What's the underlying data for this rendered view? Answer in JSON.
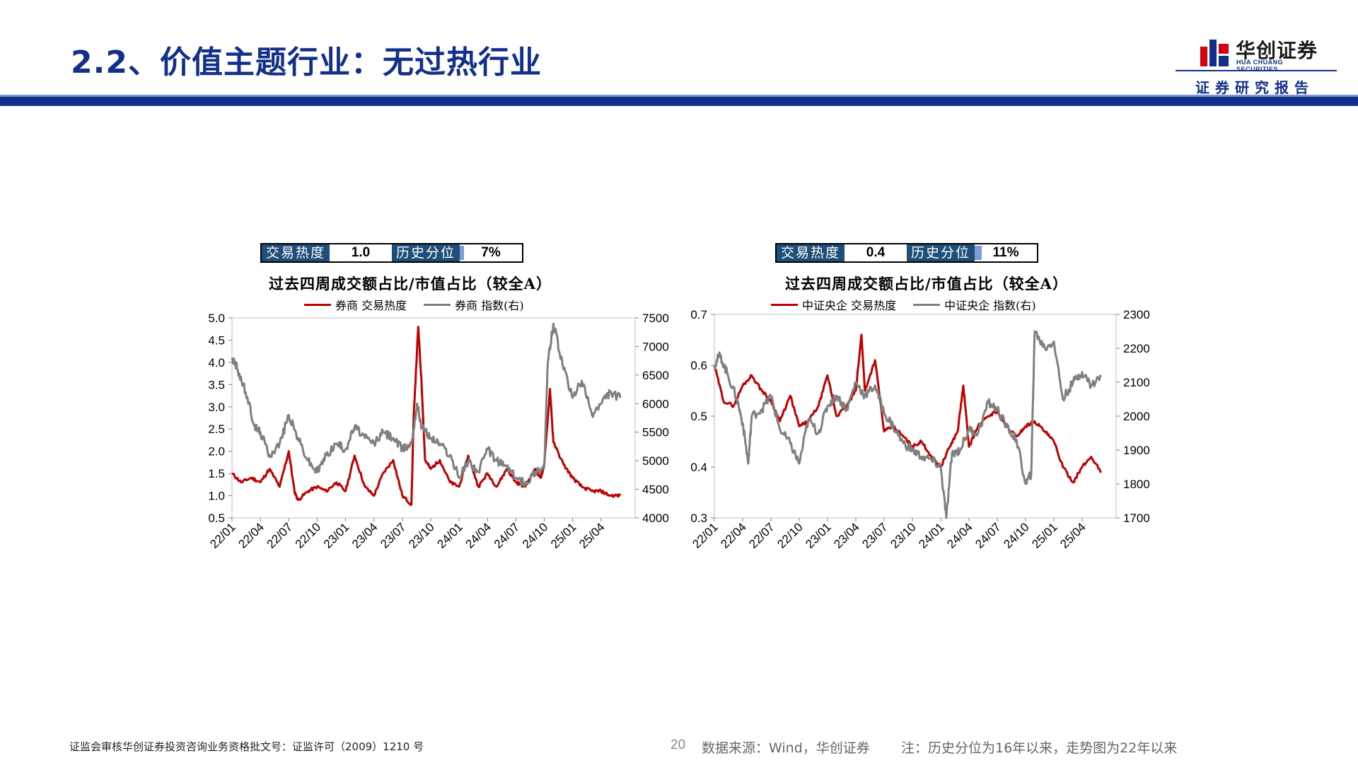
{
  "header": {
    "title": "2.2、价值主题行业：无过热行业",
    "logo_cn": "华创证券",
    "logo_en": "HUA CHUANG SECURITIES",
    "report_tag": "证券研究报告",
    "brand_color": "#12308a",
    "accent_red": "#d7000f"
  },
  "panels": [
    {
      "heat_label": "交易热度",
      "heat_value": "1.0",
      "pct_label": "历史分位",
      "pct_value": "7%",
      "pct_fraction": 0.07
    },
    {
      "heat_label": "交易热度",
      "heat_value": "0.4",
      "pct_label": "历史分位",
      "pct_value": "11%",
      "pct_fraction": 0.11
    }
  ],
  "chart_data": [
    {
      "type": "line",
      "title": "过去四周成交额占比/市值占比（较全A）",
      "x_ticks": [
        "22/01",
        "22/04",
        "22/07",
        "22/10",
        "23/01",
        "23/04",
        "23/07",
        "23/10",
        "24/01",
        "24/04",
        "24/07",
        "24/10",
        "25/01",
        "25/04"
      ],
      "left_axis": {
        "ylim": [
          0.5,
          5.0
        ],
        "ticks": [
          "0.5",
          "1.0",
          "1.5",
          "2.0",
          "2.5",
          "3.0",
          "3.5",
          "4.0",
          "4.5",
          "5.0"
        ]
      },
      "right_axis": {
        "ylim": [
          4000,
          7500
        ],
        "ticks": [
          "4000",
          "4500",
          "5000",
          "5500",
          "6000",
          "6500",
          "7000",
          "7500"
        ]
      },
      "series": [
        {
          "name": "券商 交易热度",
          "axis": "left",
          "color": "#c00000",
          "x": [
            2022.0,
            2022.08,
            2022.17,
            2022.25,
            2022.33,
            2022.42,
            2022.5,
            2022.55,
            2022.58,
            2022.67,
            2022.75,
            2022.83,
            2022.92,
            2023.0,
            2023.08,
            2023.17,
            2023.25,
            2023.33,
            2023.42,
            2023.5,
            2023.58,
            2023.6,
            2023.64,
            2023.67,
            2023.7,
            2023.75,
            2023.83,
            2023.92,
            2024.0,
            2024.08,
            2024.17,
            2024.25,
            2024.33,
            2024.42,
            2024.5,
            2024.58,
            2024.67,
            2024.72,
            2024.75,
            2024.8,
            2024.83,
            2024.92,
            2025.0,
            2025.08,
            2025.17,
            2025.25,
            2025.33,
            2025.42
          ],
          "values": [
            1.5,
            1.3,
            1.4,
            1.3,
            1.6,
            1.2,
            2.0,
            1.1,
            0.9,
            1.1,
            1.2,
            1.1,
            1.3,
            1.1,
            1.9,
            1.2,
            1.0,
            1.5,
            1.8,
            1.0,
            0.8,
            2.8,
            4.8,
            3.5,
            1.8,
            1.6,
            1.8,
            1.3,
            1.2,
            1.9,
            1.2,
            1.5,
            1.2,
            1.6,
            1.3,
            1.2,
            1.6,
            1.4,
            1.7,
            3.4,
            2.2,
            1.7,
            1.4,
            1.2,
            1.1,
            1.1,
            1.0,
            1.0
          ]
        },
        {
          "name": "券商 指数(右)",
          "axis": "right",
          "color": "#7f7f7f",
          "x": [
            2022.0,
            2022.05,
            2022.12,
            2022.2,
            2022.25,
            2022.33,
            2022.42,
            2022.5,
            2022.58,
            2022.67,
            2022.75,
            2022.83,
            2022.92,
            2023.0,
            2023.08,
            2023.17,
            2023.25,
            2023.33,
            2023.42,
            2023.5,
            2023.58,
            2023.63,
            2023.67,
            2023.75,
            2023.83,
            2023.92,
            2024.0,
            2024.08,
            2024.17,
            2024.25,
            2024.33,
            2024.42,
            2024.5,
            2024.58,
            2024.67,
            2024.75,
            2024.78,
            2024.83,
            2024.92,
            2025.0,
            2025.08,
            2025.17,
            2025.25,
            2025.33,
            2025.42
          ],
          "values": [
            6800,
            6600,
            6200,
            5600,
            5500,
            5100,
            5300,
            5800,
            5400,
            5000,
            4800,
            5100,
            5300,
            5200,
            5600,
            5400,
            5300,
            5500,
            5400,
            5200,
            5300,
            6000,
            5600,
            5400,
            5300,
            5100,
            4700,
            5000,
            4800,
            5200,
            5000,
            4900,
            4700,
            4600,
            4800,
            4900,
            6700,
            7400,
            6600,
            6100,
            6400,
            5800,
            6000,
            6200,
            6100
          ]
        }
      ]
    },
    {
      "type": "line",
      "title": "过去四周成交额占比/市值占比（较全A）",
      "x_ticks": [
        "22/01",
        "22/04",
        "22/07",
        "22/10",
        "23/01",
        "23/04",
        "23/07",
        "23/10",
        "24/01",
        "24/04",
        "24/07",
        "24/10",
        "25/01",
        "25/04"
      ],
      "left_axis": {
        "ylim": [
          0.3,
          0.7
        ],
        "ticks": [
          "0.3",
          "0.4",
          "0.5",
          "0.6",
          "0.7"
        ]
      },
      "right_axis": {
        "ylim": [
          1700,
          2300
        ],
        "ticks": [
          "1700",
          "1800",
          "1900",
          "2000",
          "2100",
          "2200",
          "2300"
        ]
      },
      "series": [
        {
          "name": "中证央企 交易热度",
          "axis": "left",
          "color": "#c00000",
          "x": [
            2022.0,
            2022.08,
            2022.17,
            2022.25,
            2022.33,
            2022.42,
            2022.5,
            2022.58,
            2022.67,
            2022.75,
            2022.83,
            2022.92,
            2023.0,
            2023.08,
            2023.17,
            2023.25,
            2023.3,
            2023.33,
            2023.42,
            2023.5,
            2023.58,
            2023.67,
            2023.75,
            2023.83,
            2023.92,
            2024.0,
            2024.08,
            2024.15,
            2024.2,
            2024.25,
            2024.33,
            2024.42,
            2024.5,
            2024.58,
            2024.67,
            2024.75,
            2024.83,
            2024.92,
            2025.0,
            2025.08,
            2025.17,
            2025.25,
            2025.33,
            2025.42
          ],
          "values": [
            0.6,
            0.53,
            0.52,
            0.56,
            0.58,
            0.55,
            0.53,
            0.49,
            0.54,
            0.48,
            0.49,
            0.52,
            0.58,
            0.5,
            0.52,
            0.55,
            0.66,
            0.55,
            0.61,
            0.47,
            0.48,
            0.46,
            0.44,
            0.45,
            0.42,
            0.4,
            0.44,
            0.47,
            0.56,
            0.44,
            0.48,
            0.5,
            0.51,
            0.48,
            0.46,
            0.48,
            0.49,
            0.47,
            0.45,
            0.4,
            0.37,
            0.4,
            0.42,
            0.39
          ]
        },
        {
          "name": "中证央企 指数(右)",
          "axis": "right",
          "color": "#7f7f7f",
          "x": [
            2022.0,
            2022.05,
            2022.12,
            2022.2,
            2022.25,
            2022.3,
            2022.33,
            2022.42,
            2022.5,
            2022.58,
            2022.67,
            2022.75,
            2022.83,
            2022.92,
            2023.0,
            2023.08,
            2023.17,
            2023.25,
            2023.33,
            2023.42,
            2023.5,
            2023.58,
            2023.67,
            2023.75,
            2023.83,
            2023.92,
            2024.0,
            2024.05,
            2024.1,
            2024.17,
            2024.25,
            2024.33,
            2024.42,
            2024.5,
            2024.58,
            2024.67,
            2024.75,
            2024.8,
            2024.83,
            2024.92,
            2025.0,
            2025.08,
            2025.17,
            2025.25,
            2025.33,
            2025.42
          ],
          "values": [
            2150,
            2180,
            2120,
            2050,
            1980,
            1860,
            2000,
            2020,
            2060,
            1960,
            1920,
            1860,
            1990,
            1950,
            2030,
            2060,
            2020,
            2100,
            2060,
            2090,
            2010,
            1970,
            1920,
            1900,
            1880,
            1870,
            1850,
            1700,
            1890,
            1900,
            1960,
            1950,
            2040,
            2020,
            1970,
            1930,
            1800,
            1830,
            2250,
            2200,
            2220,
            2050,
            2100,
            2130,
            2090,
            2120
          ]
        }
      ]
    }
  ],
  "footer": {
    "license": "证监会审核华创证券投资咨询业务资格批文号：证监许可（2009）1210 号",
    "page": "20",
    "source": "数据来源：Wind，华创证券",
    "note": "注：历史分位为16年以来，走势图为22年以来"
  }
}
